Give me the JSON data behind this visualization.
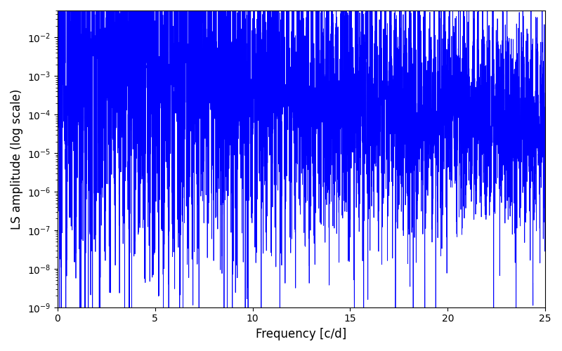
{
  "xlabel": "Frequency [c/d]",
  "ylabel": "LS amplitude (log scale)",
  "xlim": [
    0,
    25
  ],
  "ylim": [
    1e-09,
    0.05
  ],
  "line_color": "#0000ff",
  "line_width": 0.6,
  "background_color": "#ffffff",
  "figsize": [
    8.0,
    5.0
  ],
  "dpi": 100,
  "seed": 7,
  "freq_max": 25.0
}
